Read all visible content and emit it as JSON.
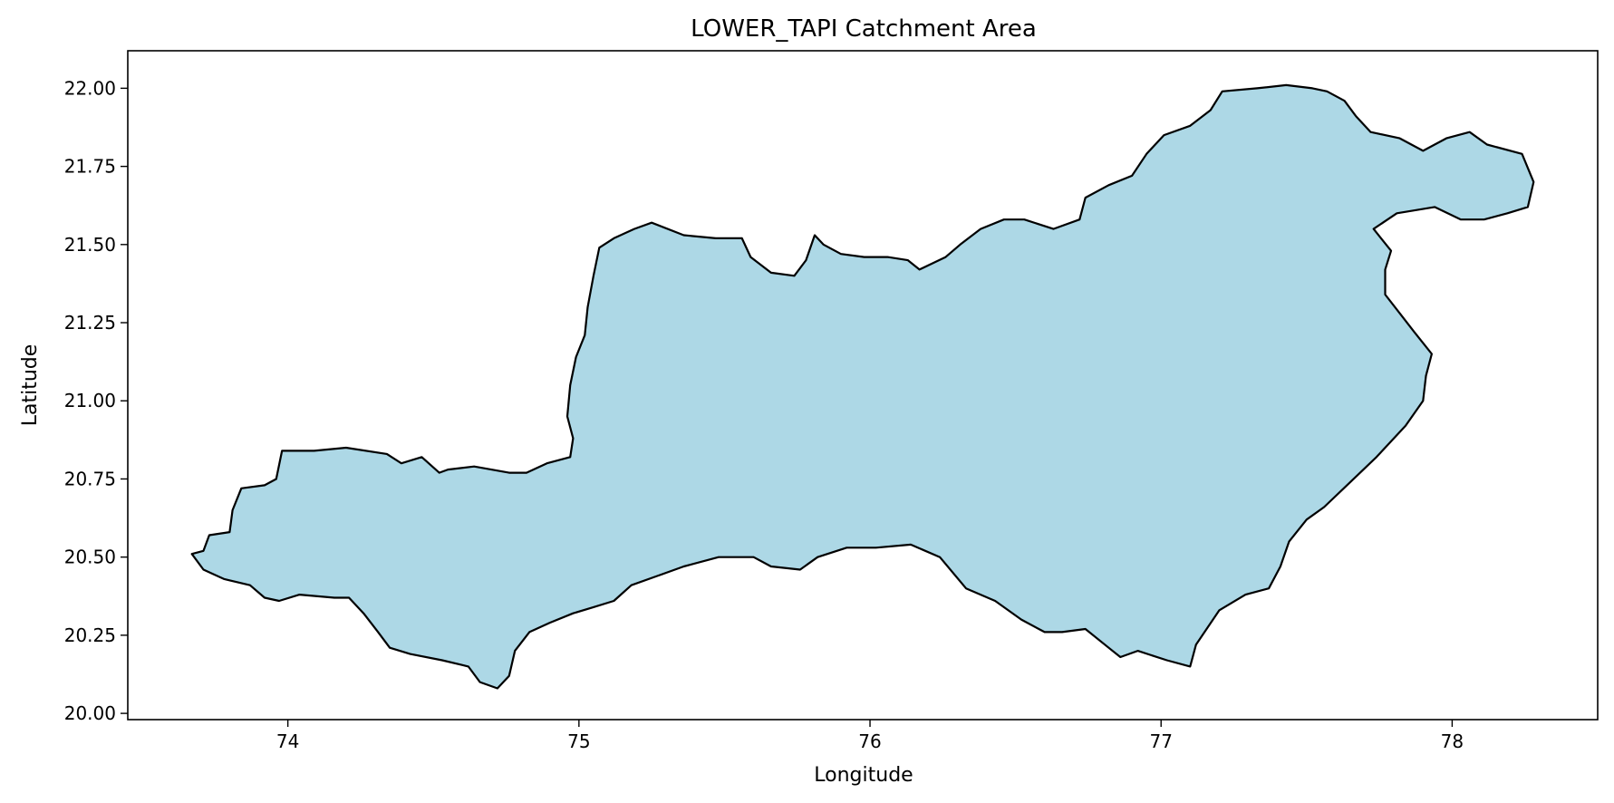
{
  "chart_data": {
    "type": "area",
    "title": "LOWER_TAPI Catchment Area",
    "xlabel": "Longitude",
    "ylabel": "Latitude",
    "xlim": [
      73.45,
      78.5
    ],
    "ylim": [
      19.98,
      22.12
    ],
    "x_ticks": [
      74,
      75,
      76,
      77,
      78
    ],
    "x_tick_labels": [
      "74",
      "75",
      "76",
      "77",
      "78"
    ],
    "y_ticks": [
      20.0,
      20.25,
      20.5,
      20.75,
      21.0,
      21.25,
      21.5,
      21.75,
      22.0
    ],
    "y_tick_labels": [
      "20.00",
      "20.25",
      "20.50",
      "20.75",
      "21.00",
      "21.25",
      "21.50",
      "21.75",
      "22.00"
    ],
    "grid": false,
    "fill_color": "#add8e6",
    "edge_color": "#000000",
    "outline": [
      [
        73.67,
        20.51
      ],
      [
        73.71,
        20.46
      ],
      [
        73.78,
        20.43
      ],
      [
        73.87,
        20.41
      ],
      [
        73.92,
        20.37
      ],
      [
        73.97,
        20.36
      ],
      [
        74.04,
        20.38
      ],
      [
        74.16,
        20.37
      ],
      [
        74.21,
        20.37
      ],
      [
        74.26,
        20.32
      ],
      [
        74.31,
        20.26
      ],
      [
        74.35,
        20.21
      ],
      [
        74.42,
        20.19
      ],
      [
        74.53,
        20.17
      ],
      [
        74.62,
        20.15
      ],
      [
        74.66,
        20.1
      ],
      [
        74.72,
        20.08
      ],
      [
        74.76,
        20.12
      ],
      [
        74.78,
        20.2
      ],
      [
        74.83,
        20.26
      ],
      [
        74.9,
        20.29
      ],
      [
        74.98,
        20.32
      ],
      [
        75.05,
        20.34
      ],
      [
        75.12,
        20.36
      ],
      [
        75.18,
        20.41
      ],
      [
        75.27,
        20.44
      ],
      [
        75.36,
        20.47
      ],
      [
        75.48,
        20.5
      ],
      [
        75.6,
        20.5
      ],
      [
        75.66,
        20.47
      ],
      [
        75.76,
        20.46
      ],
      [
        75.82,
        20.5
      ],
      [
        75.92,
        20.53
      ],
      [
        76.02,
        20.53
      ],
      [
        76.14,
        20.54
      ],
      [
        76.24,
        20.5
      ],
      [
        76.33,
        20.4
      ],
      [
        76.43,
        20.36
      ],
      [
        76.52,
        20.3
      ],
      [
        76.6,
        20.26
      ],
      [
        76.66,
        20.26
      ],
      [
        76.74,
        20.27
      ],
      [
        76.82,
        20.21
      ],
      [
        76.86,
        20.18
      ],
      [
        76.92,
        20.2
      ],
      [
        77.02,
        20.17
      ],
      [
        77.1,
        20.15
      ],
      [
        77.12,
        20.22
      ],
      [
        77.2,
        20.33
      ],
      [
        77.29,
        20.38
      ],
      [
        77.37,
        20.4
      ],
      [
        77.41,
        20.47
      ],
      [
        77.44,
        20.55
      ],
      [
        77.5,
        20.62
      ],
      [
        77.56,
        20.66
      ],
      [
        77.65,
        20.74
      ],
      [
        77.74,
        20.82
      ],
      [
        77.78,
        20.86
      ],
      [
        77.84,
        20.92
      ],
      [
        77.9,
        21.0
      ],
      [
        77.91,
        21.08
      ],
      [
        77.93,
        21.15
      ],
      [
        77.87,
        21.22
      ],
      [
        77.82,
        21.28
      ],
      [
        77.77,
        21.34
      ],
      [
        77.77,
        21.42
      ],
      [
        77.79,
        21.48
      ],
      [
        77.73,
        21.55
      ],
      [
        77.81,
        21.6
      ],
      [
        77.94,
        21.62
      ],
      [
        78.03,
        21.58
      ],
      [
        78.11,
        21.58
      ],
      [
        78.19,
        21.6
      ],
      [
        78.26,
        21.62
      ],
      [
        78.28,
        21.7
      ],
      [
        78.24,
        21.79
      ],
      [
        78.12,
        21.82
      ],
      [
        78.06,
        21.86
      ],
      [
        77.98,
        21.84
      ],
      [
        77.9,
        21.8
      ],
      [
        77.82,
        21.84
      ],
      [
        77.72,
        21.86
      ],
      [
        77.67,
        21.91
      ],
      [
        77.63,
        21.96
      ],
      [
        77.57,
        21.99
      ],
      [
        77.52,
        22.0
      ],
      [
        77.43,
        22.01
      ],
      [
        77.33,
        22.0
      ],
      [
        77.21,
        21.99
      ],
      [
        77.17,
        21.93
      ],
      [
        77.1,
        21.88
      ],
      [
        77.01,
        21.85
      ],
      [
        76.95,
        21.79
      ],
      [
        76.9,
        21.72
      ],
      [
        76.82,
        21.69
      ],
      [
        76.74,
        21.65
      ],
      [
        76.72,
        21.58
      ],
      [
        76.63,
        21.55
      ],
      [
        76.53,
        21.58
      ],
      [
        76.46,
        21.58
      ],
      [
        76.38,
        21.55
      ],
      [
        76.31,
        21.5
      ],
      [
        76.26,
        21.46
      ],
      [
        76.17,
        21.42
      ],
      [
        76.13,
        21.45
      ],
      [
        76.06,
        21.46
      ],
      [
        75.98,
        21.46
      ],
      [
        75.9,
        21.47
      ],
      [
        75.84,
        21.5
      ],
      [
        75.81,
        21.53
      ],
      [
        75.78,
        21.45
      ],
      [
        75.74,
        21.4
      ],
      [
        75.66,
        21.41
      ],
      [
        75.59,
        21.46
      ],
      [
        75.56,
        21.52
      ],
      [
        75.47,
        21.52
      ],
      [
        75.36,
        21.53
      ],
      [
        75.25,
        21.57
      ],
      [
        75.19,
        21.55
      ],
      [
        75.12,
        21.52
      ],
      [
        75.07,
        21.49
      ],
      [
        75.05,
        21.4
      ],
      [
        75.03,
        21.3
      ],
      [
        75.02,
        21.21
      ],
      [
        74.99,
        21.14
      ],
      [
        74.97,
        21.05
      ],
      [
        74.96,
        20.95
      ],
      [
        74.98,
        20.88
      ],
      [
        74.97,
        20.82
      ],
      [
        74.89,
        20.8
      ],
      [
        74.82,
        20.77
      ],
      [
        74.76,
        20.77
      ],
      [
        74.64,
        20.79
      ],
      [
        74.55,
        20.78
      ],
      [
        74.52,
        20.77
      ],
      [
        74.46,
        20.82
      ],
      [
        74.39,
        20.8
      ],
      [
        74.34,
        20.83
      ],
      [
        74.2,
        20.85
      ],
      [
        74.09,
        20.84
      ],
      [
        73.98,
        20.84
      ],
      [
        73.96,
        20.75
      ],
      [
        73.92,
        20.73
      ],
      [
        73.84,
        20.72
      ],
      [
        73.81,
        20.65
      ],
      [
        73.8,
        20.58
      ],
      [
        73.73,
        20.57
      ],
      [
        73.71,
        20.52
      ]
    ]
  }
}
